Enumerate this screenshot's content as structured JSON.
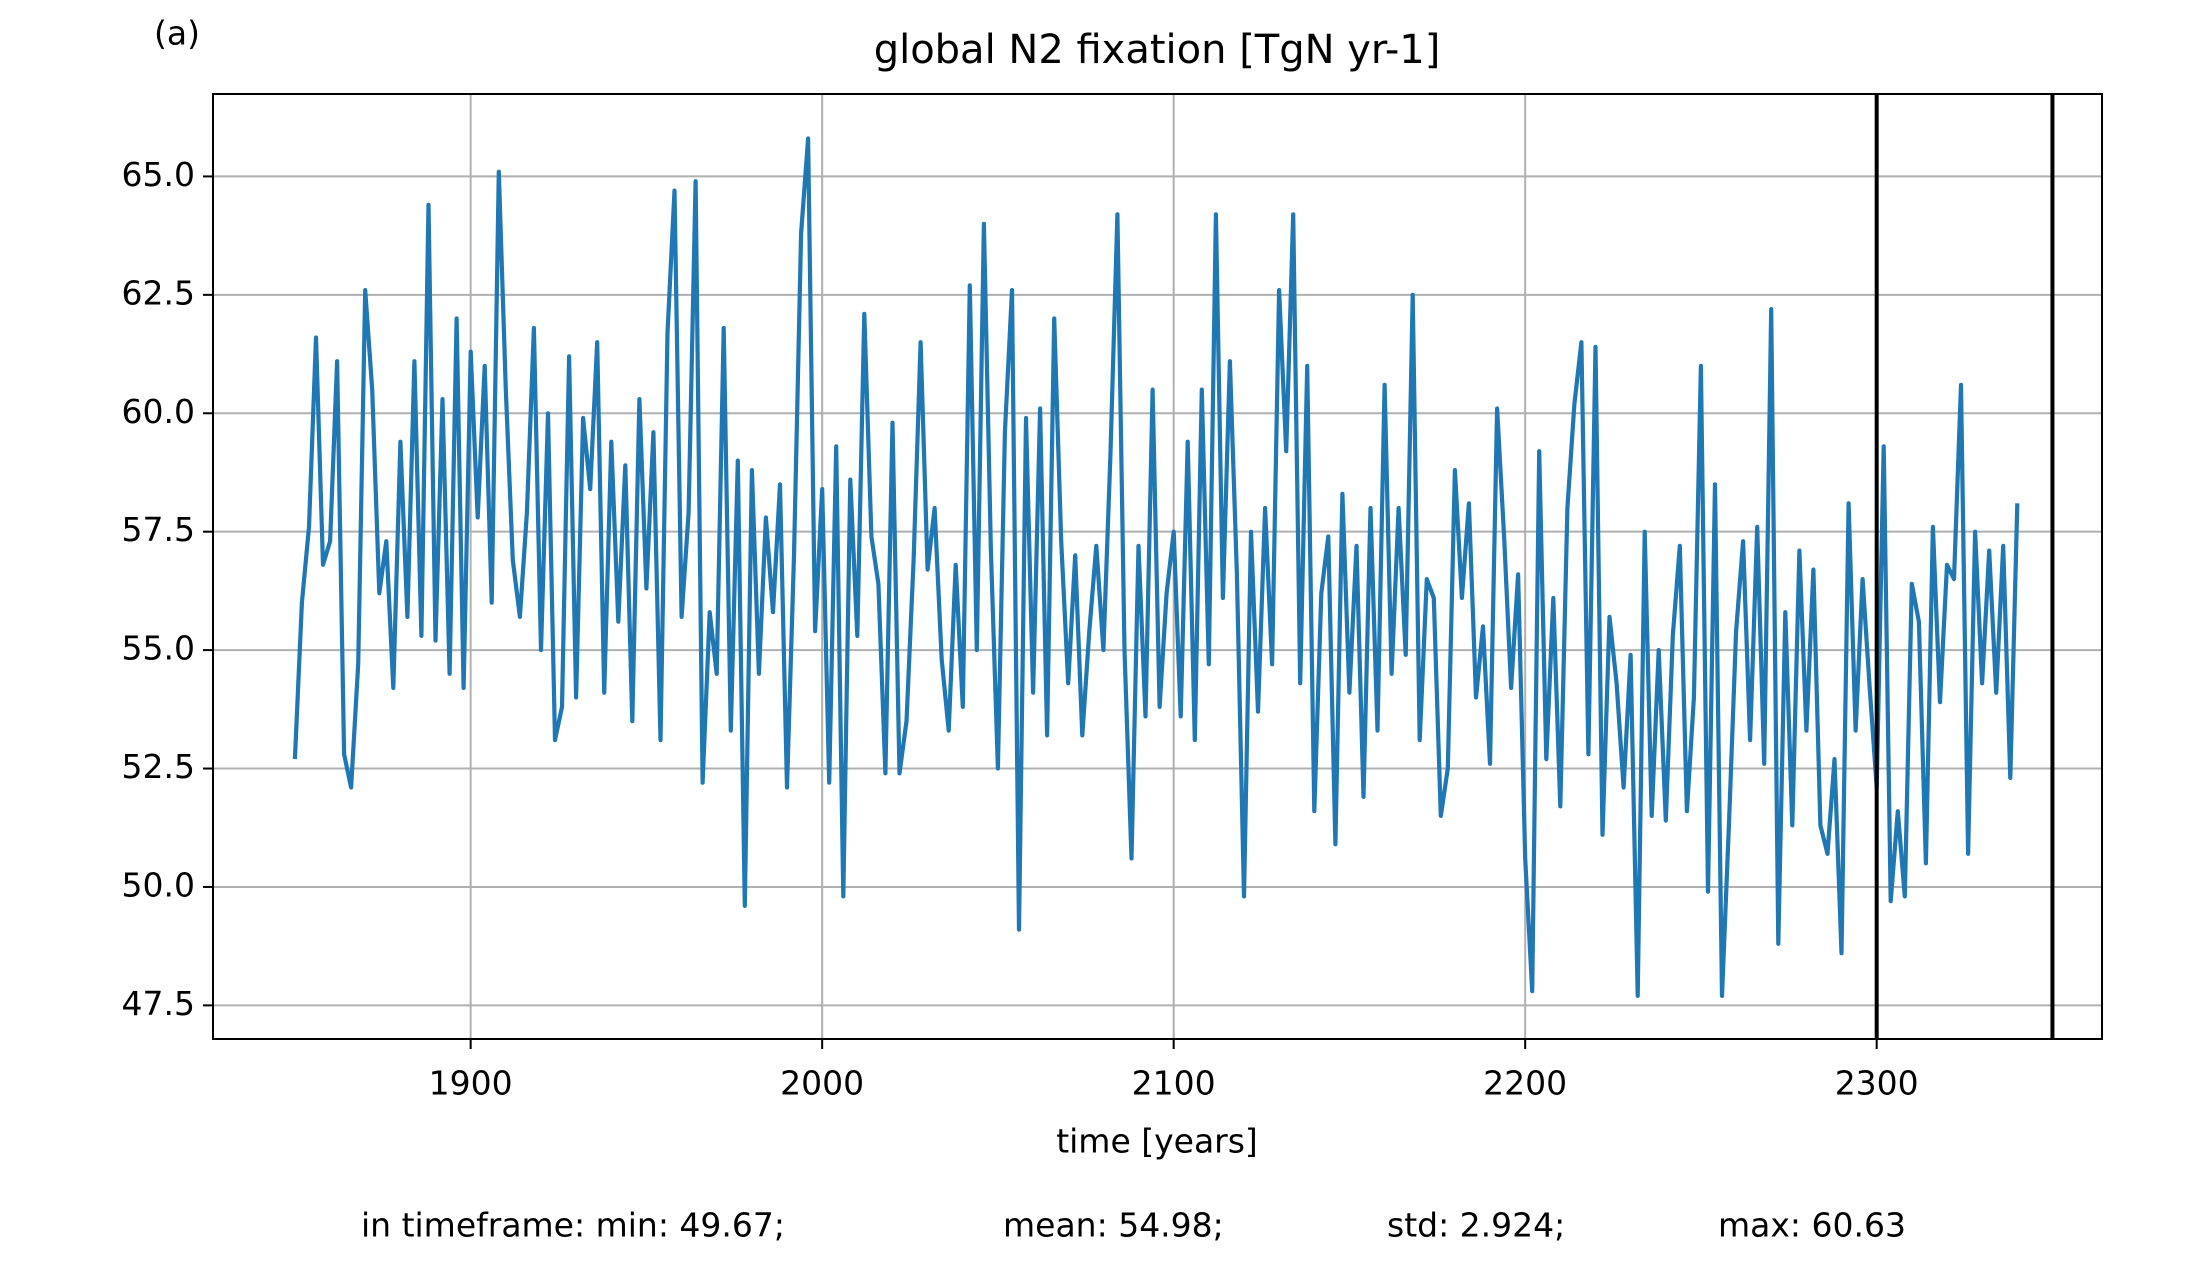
{
  "chart_data": {
    "type": "line",
    "panel_label": "(a)",
    "title": "global N2 fixation [TgN yr-1]",
    "x_label": "time [years]",
    "x": [
      1850,
      1852,
      1854,
      1856,
      1858,
      1860,
      1862,
      1864,
      1866,
      1868,
      1870,
      1872,
      1874,
      1876,
      1878,
      1880,
      1882,
      1884,
      1886,
      1888,
      1890,
      1892,
      1894,
      1896,
      1898,
      1900,
      1902,
      1904,
      1906,
      1908,
      1910,
      1912,
      1914,
      1916,
      1918,
      1920,
      1922,
      1924,
      1926,
      1928,
      1930,
      1932,
      1934,
      1936,
      1938,
      1940,
      1942,
      1944,
      1946,
      1948,
      1950,
      1952,
      1954,
      1956,
      1958,
      1960,
      1962,
      1964,
      1966,
      1968,
      1970,
      1972,
      1974,
      1976,
      1978,
      1980,
      1982,
      1984,
      1986,
      1988,
      1990,
      1992,
      1994,
      1996,
      1998,
      2000,
      2002,
      2004,
      2006,
      2008,
      2010,
      2012,
      2014,
      2016,
      2018,
      2020,
      2022,
      2024,
      2026,
      2028,
      2030,
      2032,
      2034,
      2036,
      2038,
      2040,
      2042,
      2044,
      2046,
      2048,
      2050,
      2052,
      2054,
      2056,
      2058,
      2060,
      2062,
      2064,
      2066,
      2068,
      2070,
      2072,
      2074,
      2076,
      2078,
      2080,
      2082,
      2084,
      2086,
      2088,
      2090,
      2092,
      2094,
      2096,
      2098,
      2100,
      2102,
      2104,
      2106,
      2108,
      2110,
      2112,
      2114,
      2116,
      2118,
      2120,
      2122,
      2124,
      2126,
      2128,
      2130,
      2132,
      2134,
      2136,
      2138,
      2140,
      2142,
      2144,
      2146,
      2148,
      2150,
      2152,
      2154,
      2156,
      2158,
      2160,
      2162,
      2164,
      2166,
      2168,
      2170,
      2172,
      2174,
      2176,
      2178,
      2180,
      2182,
      2184,
      2186,
      2188,
      2190,
      2192,
      2194,
      2196,
      2198,
      2200,
      2202,
      2204,
      2206,
      2208,
      2210,
      2212,
      2214,
      2216,
      2218,
      2220,
      2222,
      2224,
      2226,
      2228,
      2230,
      2232,
      2234,
      2236,
      2238,
      2240,
      2242,
      2244,
      2246,
      2248,
      2250,
      2252,
      2254,
      2256,
      2258,
      2260,
      2262,
      2264,
      2266,
      2268,
      2270,
      2272,
      2274,
      2276,
      2278,
      2280,
      2282,
      2284,
      2286,
      2288,
      2290,
      2292,
      2294,
      2296,
      2298,
      2300,
      2302,
      2304,
      2306,
      2308,
      2310,
      2312,
      2314,
      2316,
      2318,
      2320,
      2322,
      2324,
      2326,
      2328,
      2330,
      2332,
      2334,
      2336,
      2338,
      2340
    ],
    "values": [
      52.7,
      56.0,
      57.6,
      61.6,
      56.8,
      57.3,
      61.1,
      52.8,
      52.1,
      54.7,
      62.6,
      60.5,
      56.2,
      57.3,
      54.2,
      59.4,
      55.7,
      61.1,
      55.3,
      64.4,
      55.2,
      60.3,
      54.5,
      62.0,
      54.2,
      61.3,
      57.8,
      61.0,
      56.0,
      65.1,
      60.5,
      56.9,
      55.7,
      57.9,
      61.8,
      55.0,
      60.0,
      53.1,
      53.8,
      61.2,
      54.0,
      59.9,
      58.4,
      61.5,
      54.1,
      59.4,
      55.6,
      58.9,
      53.5,
      60.3,
      56.3,
      59.6,
      53.1,
      61.7,
      64.7,
      55.7,
      57.9,
      64.9,
      52.2,
      55.8,
      54.5,
      61.8,
      53.3,
      59.0,
      49.6,
      58.8,
      54.5,
      57.8,
      55.8,
      58.5,
      52.1,
      57.0,
      63.8,
      65.8,
      55.4,
      58.4,
      52.2,
      59.3,
      49.8,
      58.6,
      55.3,
      62.1,
      57.4,
      56.4,
      52.4,
      59.8,
      52.4,
      53.5,
      56.9,
      61.5,
      56.7,
      58.0,
      54.8,
      53.3,
      56.8,
      53.8,
      62.7,
      55.0,
      64.0,
      57.1,
      52.5,
      59.6,
      62.6,
      49.1,
      59.9,
      54.1,
      60.1,
      53.2,
      62.0,
      57.3,
      54.3,
      57.0,
      53.2,
      55.4,
      57.2,
      55.0,
      59.1,
      64.2,
      55.0,
      50.6,
      57.2,
      53.6,
      60.5,
      53.8,
      56.2,
      57.5,
      53.6,
      59.4,
      53.1,
      60.5,
      54.7,
      64.2,
      56.1,
      61.1,
      56.6,
      49.8,
      57.5,
      53.7,
      58.0,
      54.7,
      62.6,
      59.2,
      64.2,
      54.3,
      61.0,
      51.6,
      56.2,
      57.4,
      50.9,
      58.3,
      54.1,
      57.2,
      51.9,
      58.0,
      53.3,
      60.6,
      54.5,
      58.0,
      54.9,
      62.5,
      53.1,
      56.5,
      56.1,
      51.5,
      52.5,
      58.8,
      56.1,
      58.1,
      54.0,
      55.5,
      52.6,
      60.1,
      57.4,
      54.2,
      56.6,
      50.6,
      47.8,
      59.2,
      52.7,
      56.1,
      51.7,
      58.0,
      60.2,
      61.5,
      52.8,
      61.4,
      51.1,
      55.7,
      54.3,
      52.1,
      54.9,
      47.7,
      57.5,
      51.5,
      55.0,
      51.4,
      55.3,
      57.2,
      51.6,
      54.0,
      61.0,
      49.9,
      58.5,
      47.7,
      51.4,
      55.4,
      57.3,
      53.1,
      57.6,
      52.6,
      62.2,
      48.8,
      55.8,
      51.3,
      57.1,
      53.3,
      56.7,
      51.3,
      50.7,
      52.7,
      48.6,
      58.1,
      53.3,
      56.5,
      54.2,
      52.1,
      59.3,
      49.7,
      51.6,
      49.8,
      56.4,
      55.6,
      50.5,
      57.6,
      53.9,
      56.8,
      56.5,
      60.6,
      50.7,
      57.5,
      54.3,
      57.1,
      54.1,
      57.2,
      52.3,
      58.1
    ],
    "color": "#1f77b4",
    "vlines": [
      2300,
      2350
    ],
    "vline_color": "#000000",
    "xlim": [
      1826.7,
      2364.1
    ],
    "ylim": [
      46.79,
      66.74
    ],
    "xticks": [
      1900,
      2000,
      2100,
      2200,
      2300
    ],
    "yticks": [
      {
        "value": 47.5,
        "label": "47.5"
      },
      {
        "value": 50,
        "label": "50.0"
      },
      {
        "value": 52.5,
        "label": "52.5"
      },
      {
        "value": 55,
        "label": "55.0"
      },
      {
        "value": 57.5,
        "label": "57.5"
      },
      {
        "value": 60,
        "label": "60.0"
      },
      {
        "value": 62.5,
        "label": "62.5"
      },
      {
        "value": 65,
        "label": "65.0"
      }
    ],
    "grid": true,
    "stats": [
      "in timeframe: min: 49.67;",
      "mean: 54.98;",
      "std: 2.924;",
      "max: 60.63"
    ]
  }
}
